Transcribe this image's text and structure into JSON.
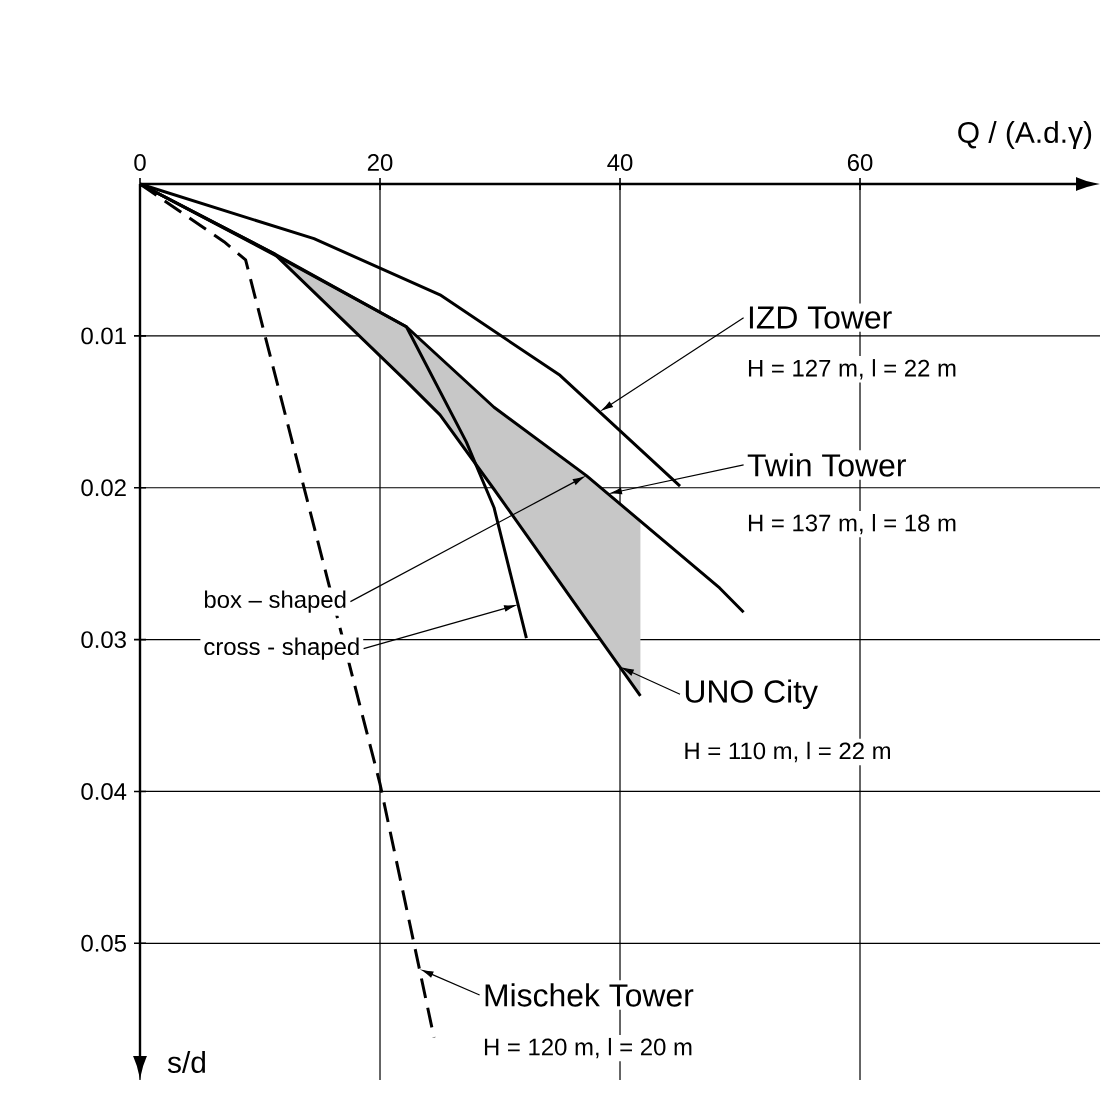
{
  "chart_data": {
    "type": "line",
    "xlabel": "Q / (A.d.γ)",
    "ylabel": "s/d",
    "xlim": [
      0,
      80
    ],
    "ylim": [
      0.059,
      0
    ],
    "xticks": [
      0,
      20,
      40,
      60
    ],
    "yticks": [
      0.01,
      0.02,
      0.03,
      0.04,
      0.05
    ],
    "grid": true,
    "marker": "none",
    "series": [
      {
        "color": "#000000",
        "line_style": "solid",
        "x": [
          0,
          14.5,
          25,
          35,
          45
        ],
        "values": [
          0,
          0.0036,
          0.0073,
          0.0126,
          0.0199
        ]
      },
      {
        "color": "#000000",
        "line_style": "solid",
        "x": [
          0,
          11.2,
          22.2,
          29.5,
          37.2,
          48.3,
          50.3
        ],
        "values": [
          0,
          0.0046,
          0.0094,
          0.0147,
          0.0192,
          0.0266,
          0.0282
        ]
      },
      {
        "color": "#000000",
        "line_style": "solid",
        "x": [
          0,
          12,
          22.2,
          27.2,
          29.5,
          32.2
        ],
        "values": [
          0,
          0.005,
          0.0094,
          0.017,
          0.0213,
          0.0299
        ]
      },
      {
        "color": "#000000",
        "line_style": "solid",
        "x": [
          0,
          11.2,
          22.2,
          25,
          29.5,
          32.2,
          37.2,
          41.7
        ],
        "values": [
          0,
          0.0046,
          0.013,
          0.0152,
          0.0201,
          0.0231,
          0.0287,
          0.0337
        ],
        "lower": [
          0,
          0.0046,
          0.0094,
          0.0114,
          0.0147,
          0.0163,
          0.0192,
          0.0222
        ],
        "upper": [
          0,
          0.0046,
          0.013,
          0.0152,
          0.0201,
          0.0231,
          0.0287,
          0.0337
        ]
      },
      {
        "color": "#000000",
        "line_style": "dashed",
        "x": [
          0,
          7,
          8.8,
          20,
          24.5
        ],
        "values": [
          0,
          0.0038,
          0.005,
          0.0395,
          0.0562
        ]
      }
    ],
    "annotations": [
      {
        "text": "IZD Tower",
        "x": 38.3,
        "y": 0.015
      },
      "H = 127 m, l = 22 m",
      {
        "text": "Twin Tower",
        "x": 39,
        "y": 0.0204
      },
      "H = 137 m, l = 18 m",
      {
        "text": "box – shaped",
        "x": 37.2,
        "y": 0.0192
      },
      {
        "text": "cross - shaped",
        "x": 31.5,
        "y": 0.0277
      },
      {
        "text": "UNO City",
        "x": 40,
        "y": 0.0318
      },
      "H = 110 m, l = 22 m",
      {
        "text": "Mischek Tower",
        "x": 23.3,
        "y": 0.0517
      },
      "H = 120 m, l = 20 m"
    ]
  }
}
